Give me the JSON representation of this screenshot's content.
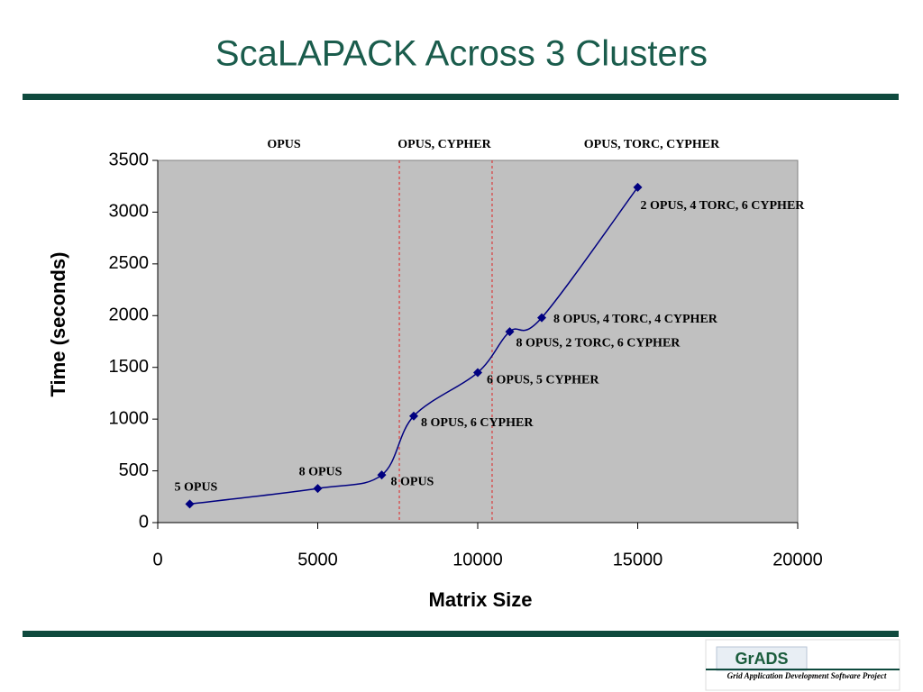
{
  "chart_data": {
    "type": "line",
    "title": "ScaLAPACK Across 3 Clusters",
    "x_label": "Matrix Size",
    "y_label": "Time (seconds)",
    "x": [
      1000,
      5000,
      7000,
      8000,
      10000,
      11000,
      12000,
      15000
    ],
    "series": [
      {
        "color": "#000080",
        "values": [
          180,
          330,
          460,
          1030,
          1450,
          1845,
          1980,
          3240
        ]
      }
    ],
    "point_labels": [
      "5 OPUS",
      "8 OPUS",
      "8 OPUS",
      "8 OPUS, 6 CYPHER",
      "6 OPUS, 5 CYPHER",
      "8 OPUS, 2 TORC, 6 CYPHER",
      "8 OPUS, 4 TORC, 4 CYPHER",
      "2 OPUS, 4 TORC, 6 CYPHER"
    ],
    "dividers": [
      7550,
      10450
    ],
    "region_labels": [
      "OPUS",
      "OPUS, CYPHER",
      "OPUS, TORC, CYPHER"
    ],
    "xlim": [
      0,
      20000
    ],
    "xticks": [
      0,
      5000,
      10000,
      15000,
      20000
    ],
    "ylim": [
      0,
      3500
    ],
    "yticks": [
      0,
      500,
      1000,
      1500,
      2000,
      2500,
      3000,
      3500
    ],
    "plot_background": "#c0c0c0"
  },
  "logo": {
    "name": "GrADS",
    "subtitle": "Grid Application Development Software Project"
  }
}
